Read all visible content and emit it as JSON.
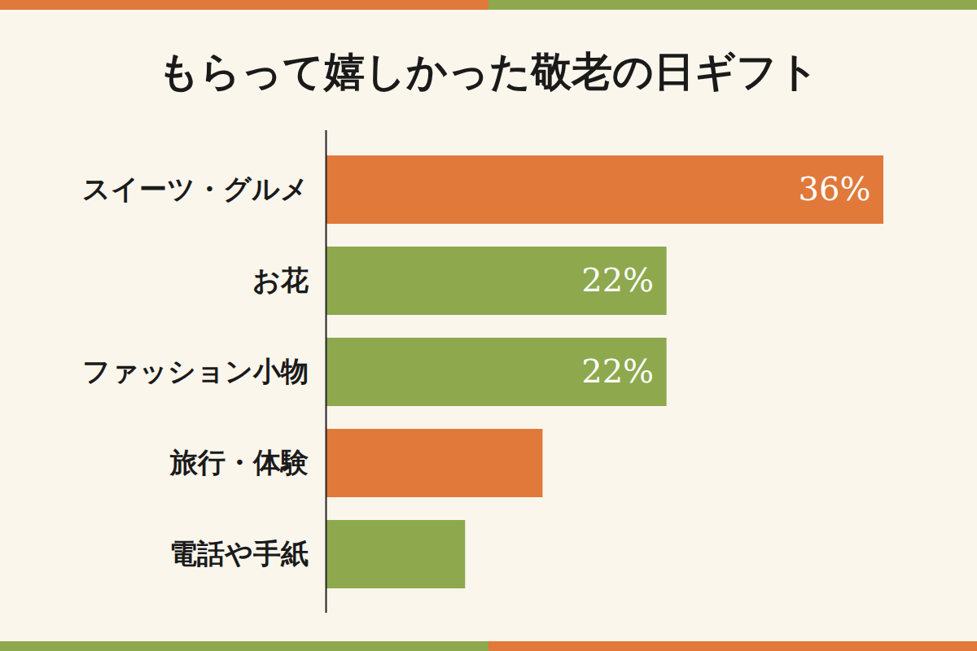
{
  "chart_data": {
    "type": "bar",
    "title": "もらって嬉しかった敬老の日ギフト",
    "orientation": "horizontal",
    "categories": [
      "スイーツ・グルメ",
      "お花",
      "ファッション小物",
      "旅行・体験",
      "電話や手紙"
    ],
    "values": [
      36,
      22,
      22,
      14,
      9
    ],
    "value_labels": [
      "36%",
      "22%",
      "22%",
      null,
      null
    ],
    "colors": [
      "#e0793a",
      "#8ea84e",
      "#8ea84e",
      "#e0793a",
      "#8ea84e"
    ],
    "xlim": [
      0,
      36
    ],
    "data_labels": true,
    "tick_labels": "y",
    "grid": false
  }
}
